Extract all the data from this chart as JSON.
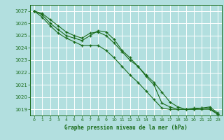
{
  "title": "Graphe pression niveau de la mer (hPa)",
  "bg_color": "#b2dfdf",
  "grid_color": "#ffffff",
  "line_color": "#1a6b1a",
  "marker_color": "#1a6b1a",
  "xlim": [
    -0.5,
    23.5
  ],
  "ylim": [
    1018.5,
    1027.5
  ],
  "yticks": [
    1019,
    1020,
    1021,
    1022,
    1023,
    1024,
    1025,
    1026,
    1027
  ],
  "xticks": [
    0,
    1,
    2,
    3,
    4,
    5,
    6,
    7,
    8,
    9,
    10,
    11,
    12,
    13,
    14,
    15,
    16,
    17,
    18,
    19,
    20,
    21,
    22,
    23
  ],
  "series": [
    [
      1027.0,
      1026.8,
      1026.3,
      1025.8,
      1025.3,
      1025.0,
      1024.8,
      1025.2,
      1025.3,
      1025.0,
      1024.4,
      1023.7,
      1023.0,
      1022.5,
      1021.8,
      1021.2,
      1020.4,
      1019.6,
      1019.2,
      1019.0,
      1019.0,
      1019.0,
      1019.0,
      1018.6
    ],
    [
      1027.0,
      1026.7,
      1026.0,
      1025.5,
      1025.0,
      1024.8,
      1024.6,
      1025.0,
      1025.4,
      1025.3,
      1024.7,
      1023.8,
      1023.2,
      1022.5,
      1021.7,
      1021.0,
      1019.5,
      1019.2,
      1019.0,
      1019.0,
      1019.1,
      1019.1,
      1019.2,
      1018.7
    ],
    [
      1027.0,
      1026.5,
      1025.8,
      1025.2,
      1024.8,
      1024.5,
      1024.2,
      1024.2,
      1024.2,
      1023.8,
      1023.2,
      1022.5,
      1021.8,
      1021.2,
      1020.5,
      1019.8,
      1019.1,
      1019.0,
      1019.0,
      1019.0,
      1019.0,
      1019.1,
      1019.1,
      1018.6
    ]
  ]
}
